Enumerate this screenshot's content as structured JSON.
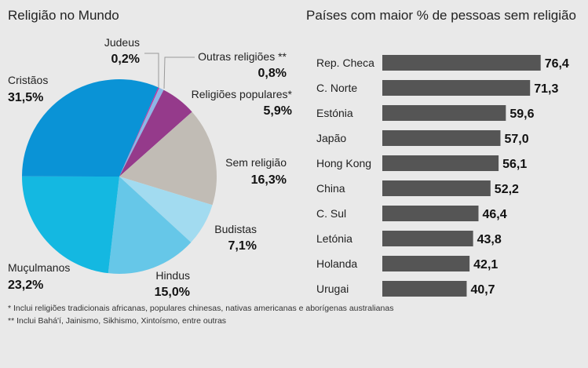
{
  "chart_data": [
    {
      "type": "pie",
      "title": "Religião no Mundo",
      "slices": [
        {
          "label": "Judeus",
          "value": 0.2,
          "display": "0,2%",
          "color": "#c82a9b"
        },
        {
          "label": "Outras religiões **",
          "value": 0.8,
          "display": "0,8%",
          "color": "#8db6e6"
        },
        {
          "label": "Religiões populares*",
          "value": 5.9,
          "display": "5,9%",
          "color": "#953a8b"
        },
        {
          "label": "Sem religião",
          "value": 16.3,
          "display": "16,3%",
          "color": "#c1bcb5"
        },
        {
          "label": "Budistas",
          "value": 7.1,
          "display": "7,1%",
          "color": "#a2dbf0"
        },
        {
          "label": "Hindus",
          "value": 15.0,
          "display": "15,0%",
          "color": "#66c7e8"
        },
        {
          "label": "Muçulmanos",
          "value": 23.2,
          "display": "23,2%",
          "color": "#14b8e1"
        },
        {
          "label": "Cristãos",
          "value": 31.5,
          "display": "31,5%",
          "color": "#0a93d6"
        }
      ]
    },
    {
      "type": "bar",
      "orientation": "horizontal",
      "title": "Países com maior % de pessoas sem religião",
      "categories": [
        "Rep. Checa",
        "C. Norte",
        "Estónia",
        "Japão",
        "Hong Kong",
        "China",
        "C. Sul",
        "Letónia",
        "Holanda",
        "Urugai"
      ],
      "values": [
        76.4,
        71.3,
        59.6,
        57.0,
        56.1,
        52.2,
        46.4,
        43.8,
        42.1,
        40.7
      ],
      "labels": [
        "76,4",
        "71,3",
        "59,6",
        "57,0",
        "56,1",
        "52,2",
        "46,4",
        "43,8",
        "42,1",
        "40,7"
      ],
      "color": "#555555",
      "xlim": [
        0,
        80
      ]
    }
  ],
  "footnotes": [
    "* Inclui religiões tradicionais africanas, populares chinesas, nativas americanas e aborígenas australianas",
    "** Inclui Bahá'í, Jainismo, Sikhismo, Xintoísmo, entre outras"
  ]
}
